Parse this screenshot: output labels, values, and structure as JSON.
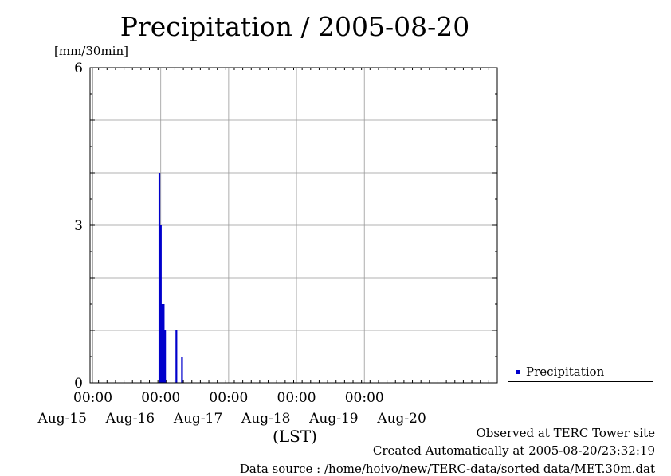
{
  "chart_data": {
    "type": "bar",
    "title": "Precipitation / 2005-08-20",
    "ylabel": "[mm/30min]",
    "xlabel": "(LST)",
    "ylim": [
      0,
      6
    ],
    "yticks": [
      "0",
      "3",
      "6"
    ],
    "xlim": [
      "2005-08-14T23:00",
      "2005-08-20T23:00"
    ],
    "xticks": [
      {
        "time": "2005-08-15T00:00",
        "label_time": "00:00",
        "label_date": "Aug-15"
      },
      {
        "time": "2005-08-16T00:00",
        "label_time": "00:00",
        "label_date": "Aug-16"
      },
      {
        "time": "2005-08-17T00:00",
        "label_time": "00:00",
        "label_date": "Aug-17"
      },
      {
        "time": "2005-08-18T00:00",
        "label_time": "00:00",
        "label_date": "Aug-18"
      },
      {
        "time": "2005-08-19T00:00",
        "label_time": "00:00",
        "label_date": "Aug-19"
      }
    ],
    "extra_date_label": "Aug-20",
    "grid": true,
    "legend_position": "right",
    "series": [
      {
        "name": "Precipitation",
        "color": "#0000cc",
        "points": [
          {
            "t": "2005-08-15T23:30",
            "v": 4.0
          },
          {
            "t": "2005-08-16T00:00",
            "v": 3.0
          },
          {
            "t": "2005-08-16T00:30",
            "v": 1.5
          },
          {
            "t": "2005-08-16T01:00",
            "v": 1.5
          },
          {
            "t": "2005-08-16T01:30",
            "v": 1.0
          },
          {
            "t": "2005-08-16T05:30",
            "v": 1.0
          },
          {
            "t": "2005-08-16T07:30",
            "v": 0.5
          }
        ]
      }
    ]
  },
  "footer": {
    "line1": "Observed at TERC Tower site",
    "line2": "Created Automatically at 2005-08-20/23:32:19",
    "line3": "Data source : /home/hoivo/new/TERC-data/sorted  data/MET.30m.dat"
  }
}
